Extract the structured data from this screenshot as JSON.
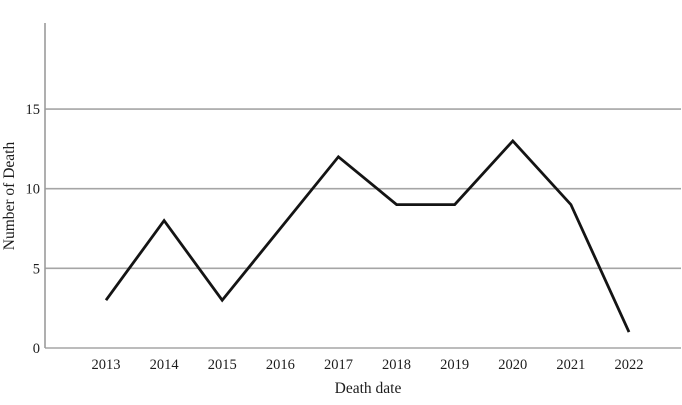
{
  "chart_data": {
    "type": "line",
    "title": "",
    "xlabel": "Death date",
    "ylabel": "Number of Death",
    "categories": [
      "2013",
      "2014",
      "2015",
      "2016",
      "2017",
      "2018",
      "2019",
      "2020",
      "2021",
      "2022"
    ],
    "series": [
      {
        "name": "Number of Death",
        "values": [
          3,
          8,
          3,
          null,
          12,
          9,
          9,
          13,
          9,
          1
        ]
      }
    ],
    "ylim": [
      0,
      20
    ],
    "yticks": [
      0,
      5,
      10,
      15
    ],
    "grid": "horizontal",
    "legend": "none",
    "layout_hints": {
      "missing_point_2016": "line drawn straight from 2015 value to 2017 value",
      "plot_style": "single black polyline, gray horizontal gridlines, left axis line only, no tick marks, no top/right border"
    },
    "colors": {
      "line": "#141414",
      "grid": "#a5a5a5",
      "axis": "#9b9b9b",
      "text": "#1c1c1c",
      "background": "#ffffff"
    }
  }
}
